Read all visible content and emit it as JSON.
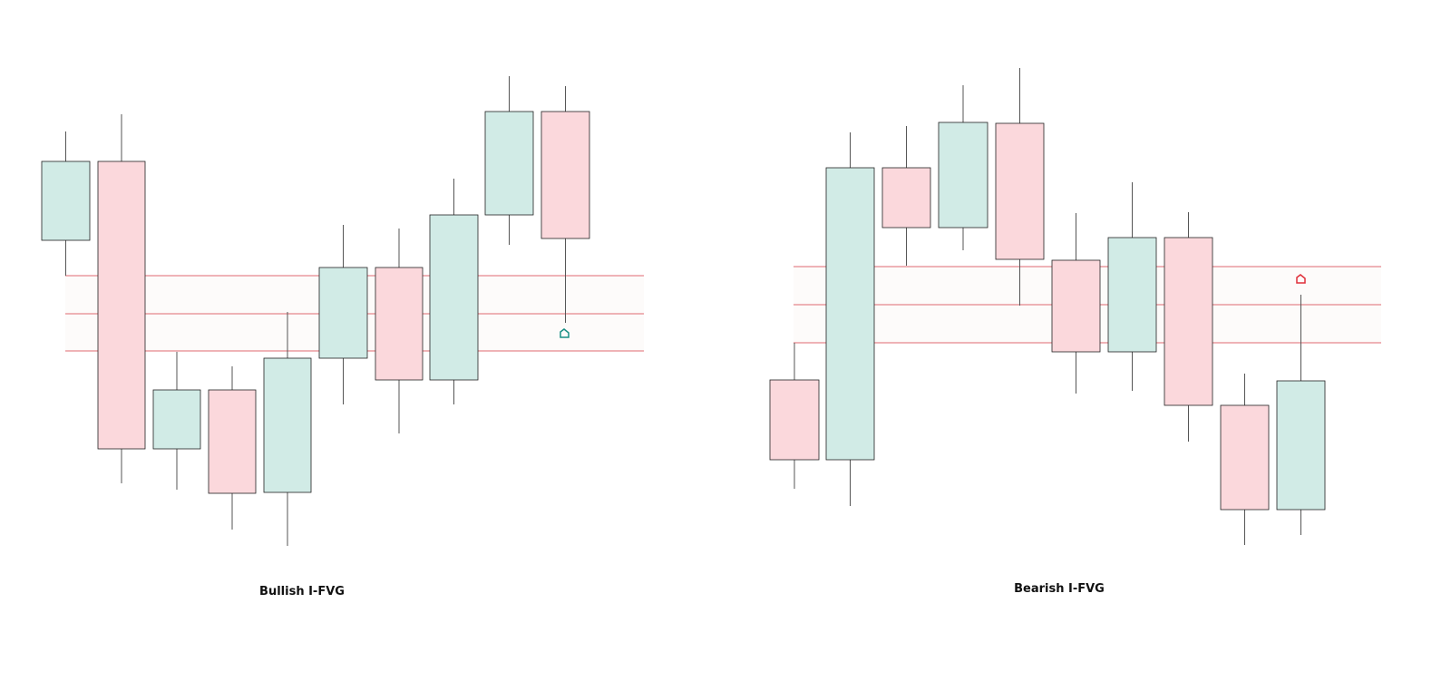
{
  "panels": [
    {
      "caption": "Bullish I-FVG"
    },
    {
      "caption": "Bearish I-FVG"
    }
  ]
}
